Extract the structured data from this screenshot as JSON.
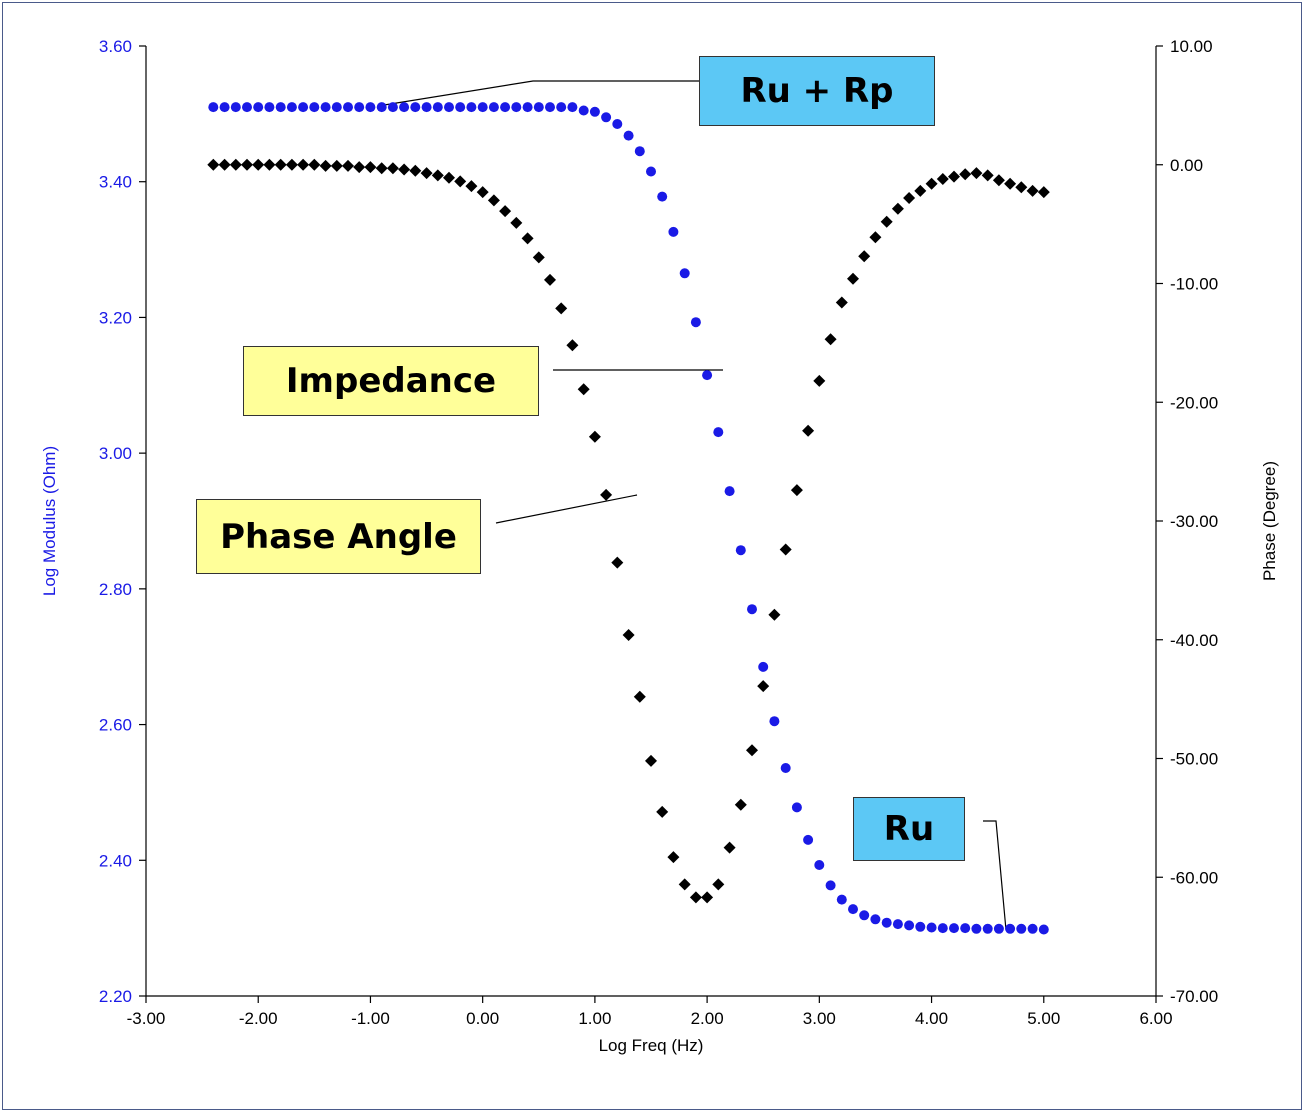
{
  "chart_data": {
    "type": "scatter",
    "xlabel": "Log Freq (Hz)",
    "ylabel_left": "Log Modulus  (Ohm)",
    "ylabel_right": "Phase (Degree)",
    "xlim": [
      -3,
      6
    ],
    "ylim_left": [
      2.2,
      3.6
    ],
    "ylim_right": [
      -70,
      10
    ],
    "x_ticks": [
      "-3.00",
      "-2.00",
      "-1.00",
      "0.00",
      "1.00",
      "2.00",
      "3.00",
      "4.00",
      "5.00",
      "6.00"
    ],
    "y_left_ticks": [
      "2.20",
      "2.40",
      "2.60",
      "2.80",
      "3.00",
      "3.20",
      "3.40",
      "3.60"
    ],
    "y_right_ticks": [
      "-70.00",
      "-60.00",
      "-50.00",
      "-40.00",
      "-30.00",
      "-20.00",
      "-10.00",
      "0.00",
      "10.00"
    ],
    "grid": false,
    "colors": {
      "impedance": "#1a1ae6",
      "phase": "#000000",
      "left_axis_text": "#1a1ae6"
    },
    "series": [
      {
        "axis": "left",
        "marker": "circle",
        "x": [
          -2.4,
          -2.3,
          -2.2,
          -2.1,
          -2.0,
          -1.9,
          -1.8,
          -1.7,
          -1.6,
          -1.5,
          -1.4,
          -1.3,
          -1.2,
          -1.1,
          -1.0,
          -0.9,
          -0.8,
          -0.7,
          -0.6,
          -0.5,
          -0.4,
          -0.3,
          -0.2,
          -0.1,
          0.0,
          0.1,
          0.2,
          0.3,
          0.4,
          0.5,
          0.6,
          0.7,
          0.8,
          0.9,
          1.0,
          1.1,
          1.2,
          1.3,
          1.4,
          1.5,
          1.6,
          1.7,
          1.8,
          1.9,
          2.0,
          2.1,
          2.2,
          2.3,
          2.4,
          2.5,
          2.6,
          2.7,
          2.8,
          2.9,
          3.0,
          3.1,
          3.2,
          3.3,
          3.4,
          3.5,
          3.6,
          3.7,
          3.8,
          3.9,
          4.0,
          4.1,
          4.2,
          4.3,
          4.4,
          4.5,
          4.6,
          4.7,
          4.8,
          4.9,
          5.0
        ],
        "y": [
          3.51,
          3.51,
          3.51,
          3.51,
          3.51,
          3.51,
          3.51,
          3.51,
          3.51,
          3.51,
          3.51,
          3.51,
          3.51,
          3.51,
          3.51,
          3.51,
          3.51,
          3.51,
          3.51,
          3.51,
          3.51,
          3.51,
          3.51,
          3.51,
          3.51,
          3.51,
          3.51,
          3.51,
          3.51,
          3.51,
          3.51,
          3.51,
          3.51,
          3.505,
          3.503,
          3.495,
          3.485,
          3.468,
          3.445,
          3.415,
          3.378,
          3.326,
          3.265,
          3.193,
          3.115,
          3.031,
          2.944,
          2.857,
          2.77,
          2.685,
          2.605,
          2.536,
          2.478,
          2.43,
          2.393,
          2.363,
          2.342,
          2.328,
          2.319,
          2.313,
          2.308,
          2.306,
          2.304,
          2.302,
          2.301,
          2.3,
          2.3,
          2.3,
          2.299,
          2.299,
          2.299,
          2.299,
          2.299,
          2.299,
          2.298
        ]
      },
      {
        "axis": "right",
        "marker": "diamond",
        "x": [
          -2.4,
          -2.3,
          -2.2,
          -2.1,
          -2.0,
          -1.9,
          -1.8,
          -1.7,
          -1.6,
          -1.5,
          -1.4,
          -1.3,
          -1.2,
          -1.1,
          -1.0,
          -0.9,
          -0.8,
          -0.7,
          -0.6,
          -0.5,
          -0.4,
          -0.3,
          -0.2,
          -0.1,
          0.0,
          0.1,
          0.2,
          0.3,
          0.4,
          0.5,
          0.6,
          0.7,
          0.8,
          0.9,
          1.0,
          1.1,
          1.2,
          1.3,
          1.4,
          1.5,
          1.6,
          1.7,
          1.8,
          1.9,
          2.0,
          2.1,
          2.2,
          2.3,
          2.4,
          2.5,
          2.6,
          2.7,
          2.8,
          2.9,
          3.0,
          3.1,
          3.2,
          3.3,
          3.4,
          3.5,
          3.6,
          3.7,
          3.8,
          3.9,
          4.0,
          4.1,
          4.2,
          4.3,
          4.4,
          4.5,
          4.6,
          4.7,
          4.8,
          4.9,
          5.0
        ],
        "y": [
          0.0,
          0.0,
          0.0,
          0.0,
          0.0,
          0.0,
          0.0,
          0.0,
          0.0,
          0.0,
          -0.1,
          -0.1,
          -0.1,
          -0.2,
          -0.2,
          -0.3,
          -0.3,
          -0.4,
          -0.5,
          -0.7,
          -0.9,
          -1.1,
          -1.4,
          -1.8,
          -2.3,
          -3.0,
          -3.9,
          -4.9,
          -6.2,
          -7.8,
          -9.7,
          -12.1,
          -15.2,
          -18.9,
          -22.9,
          -27.8,
          -33.5,
          -39.6,
          -44.8,
          -50.2,
          -54.5,
          -58.3,
          -60.6,
          -61.7,
          -61.7,
          -60.6,
          -57.5,
          -53.9,
          -49.3,
          -43.9,
          -37.9,
          -32.4,
          -27.4,
          -22.4,
          -18.2,
          -14.7,
          -11.6,
          -9.6,
          -7.7,
          -6.1,
          -4.8,
          -3.7,
          -2.8,
          -2.2,
          -1.6,
          -1.2,
          -1.0,
          -0.8,
          -0.7,
          -0.9,
          -1.3,
          -1.6,
          -1.9,
          -2.2,
          -2.3
        ]
      }
    ],
    "annotations": [
      {
        "text": "Ru + Rp"
      },
      {
        "text": "Impedance"
      },
      {
        "text": "Phase Angle"
      },
      {
        "text": "Ru"
      }
    ]
  }
}
